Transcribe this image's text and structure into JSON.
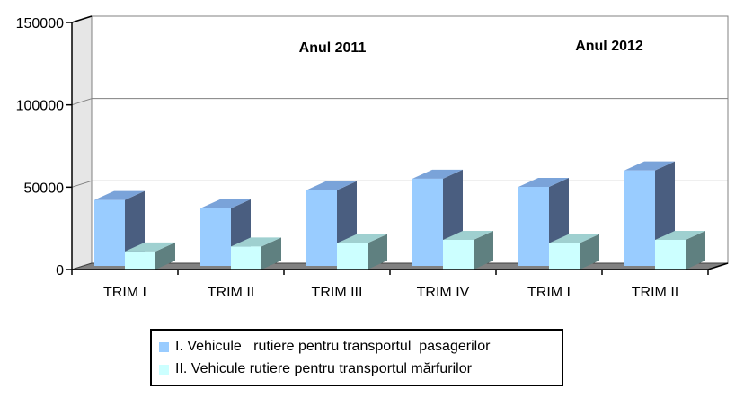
{
  "chart_data": {
    "type": "bar",
    "categories": [
      "TRIM I",
      "TRIM II",
      "TRIM III",
      "TRIM IV",
      "TRIM I",
      "TRIM II"
    ],
    "series": [
      {
        "name": "I. Vehicule   rutiere pentru transportul  pasagerilor",
        "values": [
          40000,
          35000,
          46000,
          53000,
          48000,
          58000
        ],
        "color": "#99ccff"
      },
      {
        "name": "II. Vehicule rutiere pentru transportul mărfurilor",
        "values": [
          11000,
          14000,
          16000,
          18000,
          16000,
          18000
        ],
        "color": "#ccffff"
      }
    ],
    "y_ticks": [
      "0",
      "50000",
      "100000",
      "150000"
    ],
    "ylim": [
      0,
      150000
    ],
    "annotations": [
      "Anul 2011",
      "Anul 2012"
    ],
    "grid": true,
    "legend_position": "bottom"
  }
}
